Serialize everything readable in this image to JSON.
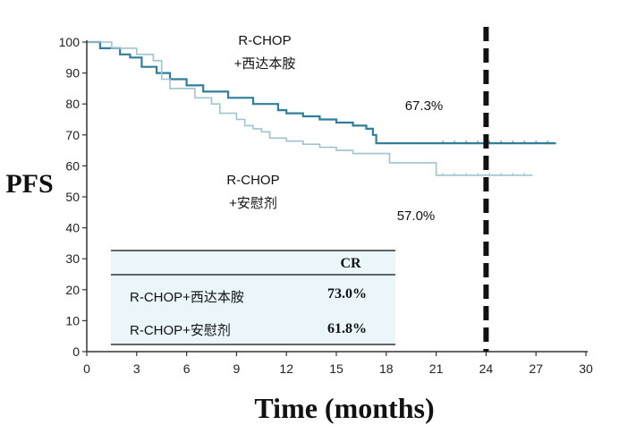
{
  "chart_data": {
    "type": "line",
    "title": "",
    "xlabel": "Time (months)",
    "ylabel": "PFS",
    "xlim": [
      0,
      30
    ],
    "ylim": [
      0,
      100
    ],
    "xticks": [
      0,
      3,
      6,
      9,
      12,
      15,
      18,
      21,
      24,
      27,
      30
    ],
    "yticks": [
      0,
      10,
      20,
      30,
      40,
      50,
      60,
      70,
      80,
      90,
      100
    ],
    "reference_line_x": 24,
    "series": [
      {
        "name": "R-CHOP+西达本胺",
        "label_lines": [
          "R-CHOP",
          "+西达本胺"
        ],
        "color": "#2f7f9a",
        "end_value_label": "67.3%",
        "points": [
          [
            0,
            100
          ],
          [
            0.8,
            98
          ],
          [
            2,
            96
          ],
          [
            2.6,
            95
          ],
          [
            3.3,
            92
          ],
          [
            4.2,
            90
          ],
          [
            5,
            88
          ],
          [
            6,
            86
          ],
          [
            7,
            84
          ],
          [
            8.5,
            82
          ],
          [
            10,
            80
          ],
          [
            11.5,
            78
          ],
          [
            12,
            77
          ],
          [
            13,
            76
          ],
          [
            14,
            75
          ],
          [
            15,
            74
          ],
          [
            16,
            73
          ],
          [
            16.8,
            72
          ],
          [
            17.2,
            70
          ],
          [
            17.4,
            67.3
          ],
          [
            21,
            67.3
          ],
          [
            24,
            67.3
          ],
          [
            28.2,
            67.3
          ]
        ]
      },
      {
        "name": "R-CHOP+安慰剂",
        "label_lines": [
          "R-CHOP",
          "+安慰剂"
        ],
        "color": "#9fc4d1",
        "end_value_label": "57.0%",
        "points": [
          [
            0,
            100
          ],
          [
            1.5,
            98
          ],
          [
            3,
            96
          ],
          [
            4,
            94
          ],
          [
            4.5,
            88
          ],
          [
            5,
            85
          ],
          [
            6.5,
            82
          ],
          [
            7.5,
            80
          ],
          [
            8,
            77
          ],
          [
            9,
            75
          ],
          [
            9.5,
            73
          ],
          [
            10,
            72
          ],
          [
            10.5,
            71
          ],
          [
            11,
            69
          ],
          [
            12,
            68
          ],
          [
            13,
            67
          ],
          [
            14,
            66
          ],
          [
            15,
            65
          ],
          [
            16,
            64
          ],
          [
            17.8,
            64
          ],
          [
            18.2,
            61
          ],
          [
            20.8,
            61
          ],
          [
            21,
            57
          ],
          [
            24,
            57
          ],
          [
            26.8,
            57
          ]
        ]
      }
    ],
    "table": {
      "header": "CR",
      "rows": [
        {
          "label": "R-CHOP+西达本胺",
          "value": "73.0%"
        },
        {
          "label": "R-CHOP+安慰剂",
          "value": "61.8%"
        }
      ]
    }
  }
}
